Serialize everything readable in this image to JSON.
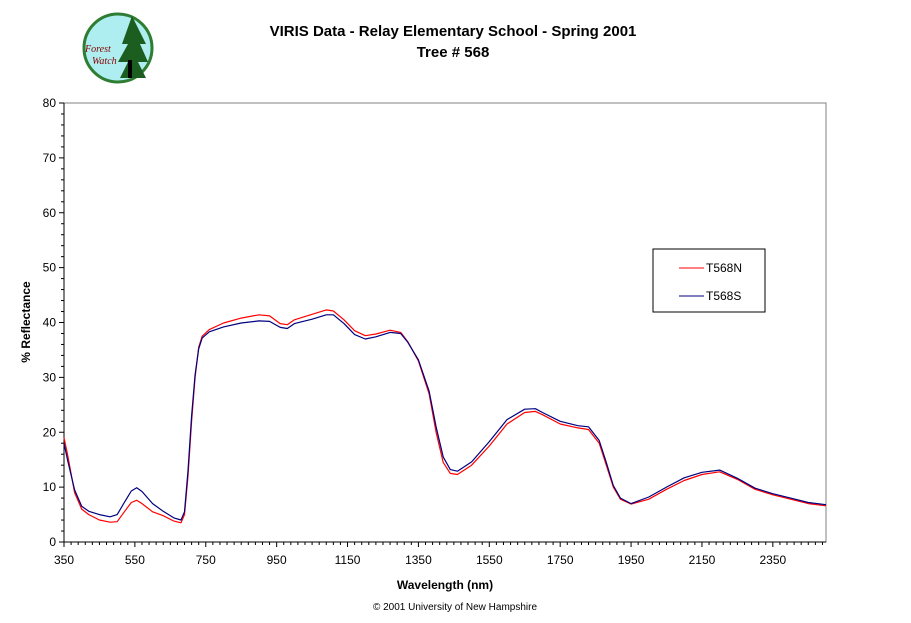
{
  "logo": {
    "line1": "Forest",
    "line2": "Watch"
  },
  "copyright": "© 2001 University of New Hampshire",
  "colors": {
    "series1": "#ff0000",
    "series2": "#000080",
    "logo_bg": "#aeeef0",
    "logo_ring": "#2e7d32"
  },
  "chart_data": {
    "type": "line",
    "title": "VIRIS Data - Relay Elementary School - Spring 2001",
    "subtitle": "Tree # 568",
    "xlabel": "Wavelength (nm)",
    "ylabel": "% Reflectance",
    "xlim": [
      350,
      2500
    ],
    "ylim": [
      0,
      80
    ],
    "xticks": [
      350,
      550,
      750,
      950,
      1150,
      1350,
      1550,
      1750,
      1950,
      2150,
      2350
    ],
    "yticks": [
      0,
      10,
      20,
      30,
      40,
      50,
      60,
      70,
      80
    ],
    "grid": false,
    "legend_position": "right",
    "series": [
      {
        "name": "T568N",
        "color": "#ff0000",
        "points": [
          [
            350,
            19
          ],
          [
            360,
            16
          ],
          [
            380,
            9
          ],
          [
            400,
            6
          ],
          [
            420,
            5
          ],
          [
            450,
            4
          ],
          [
            480,
            3.6
          ],
          [
            500,
            3.7
          ],
          [
            520,
            5.5
          ],
          [
            540,
            7.2
          ],
          [
            555,
            7.6
          ],
          [
            570,
            7.0
          ],
          [
            600,
            5.5
          ],
          [
            630,
            4.8
          ],
          [
            660,
            3.8
          ],
          [
            680,
            3.5
          ],
          [
            690,
            5
          ],
          [
            700,
            12
          ],
          [
            710,
            22
          ],
          [
            720,
            30
          ],
          [
            730,
            35.5
          ],
          [
            740,
            37.5
          ],
          [
            760,
            38.7
          ],
          [
            800,
            39.9
          ],
          [
            850,
            40.8
          ],
          [
            900,
            41.4
          ],
          [
            930,
            41.2
          ],
          [
            960,
            39.8
          ],
          [
            980,
            39.6
          ],
          [
            1000,
            40.5
          ],
          [
            1050,
            41.5
          ],
          [
            1090,
            42.3
          ],
          [
            1110,
            42.1
          ],
          [
            1140,
            40.5
          ],
          [
            1170,
            38.5
          ],
          [
            1200,
            37.6
          ],
          [
            1230,
            37.9
          ],
          [
            1270,
            38.6
          ],
          [
            1300,
            38.2
          ],
          [
            1320,
            36.5
          ],
          [
            1350,
            33
          ],
          [
            1380,
            27
          ],
          [
            1400,
            20
          ],
          [
            1420,
            14.5
          ],
          [
            1440,
            12.5
          ],
          [
            1460,
            12.3
          ],
          [
            1500,
            14
          ],
          [
            1550,
            17.5
          ],
          [
            1600,
            21.5
          ],
          [
            1650,
            23.6
          ],
          [
            1680,
            23.8
          ],
          [
            1700,
            23.2
          ],
          [
            1750,
            21.5
          ],
          [
            1800,
            20.8
          ],
          [
            1830,
            20.5
          ],
          [
            1860,
            18
          ],
          [
            1880,
            14
          ],
          [
            1900,
            10
          ],
          [
            1920,
            7.8
          ],
          [
            1950,
            6.9
          ],
          [
            2000,
            7.8
          ],
          [
            2050,
            9.6
          ],
          [
            2100,
            11.2
          ],
          [
            2150,
            12.3
          ],
          [
            2200,
            12.8
          ],
          [
            2250,
            11.4
          ],
          [
            2300,
            9.6
          ],
          [
            2350,
            8.6
          ],
          [
            2400,
            7.8
          ],
          [
            2450,
            7.0
          ],
          [
            2500,
            6.6
          ]
        ]
      },
      {
        "name": "T568S",
        "color": "#000080",
        "points": [
          [
            350,
            18
          ],
          [
            360,
            15
          ],
          [
            380,
            9.5
          ],
          [
            400,
            6.5
          ],
          [
            420,
            5.6
          ],
          [
            450,
            5
          ],
          [
            480,
            4.6
          ],
          [
            500,
            5.0
          ],
          [
            520,
            7.2
          ],
          [
            540,
            9.3
          ],
          [
            555,
            9.9
          ],
          [
            570,
            9.2
          ],
          [
            600,
            7.0
          ],
          [
            630,
            5.6
          ],
          [
            660,
            4.4
          ],
          [
            680,
            4.0
          ],
          [
            690,
            5.5
          ],
          [
            700,
            13
          ],
          [
            710,
            23
          ],
          [
            720,
            30.5
          ],
          [
            730,
            35.2
          ],
          [
            740,
            37.2
          ],
          [
            760,
            38.3
          ],
          [
            800,
            39.2
          ],
          [
            850,
            39.9
          ],
          [
            900,
            40.3
          ],
          [
            930,
            40.2
          ],
          [
            960,
            39.1
          ],
          [
            980,
            38.9
          ],
          [
            1000,
            39.8
          ],
          [
            1050,
            40.6
          ],
          [
            1090,
            41.4
          ],
          [
            1110,
            41.4
          ],
          [
            1140,
            39.8
          ],
          [
            1170,
            37.8
          ],
          [
            1200,
            37.0
          ],
          [
            1230,
            37.4
          ],
          [
            1270,
            38.2
          ],
          [
            1300,
            38.0
          ],
          [
            1320,
            36.4
          ],
          [
            1350,
            33.2
          ],
          [
            1380,
            27.5
          ],
          [
            1400,
            21
          ],
          [
            1420,
            15.5
          ],
          [
            1440,
            13.2
          ],
          [
            1460,
            12.9
          ],
          [
            1500,
            14.6
          ],
          [
            1550,
            18.3
          ],
          [
            1600,
            22.3
          ],
          [
            1650,
            24.2
          ],
          [
            1680,
            24.3
          ],
          [
            1700,
            23.6
          ],
          [
            1750,
            22.0
          ],
          [
            1800,
            21.2
          ],
          [
            1830,
            21.0
          ],
          [
            1860,
            18.5
          ],
          [
            1880,
            14.5
          ],
          [
            1900,
            10.3
          ],
          [
            1920,
            8.0
          ],
          [
            1950,
            7.0
          ],
          [
            2000,
            8.2
          ],
          [
            2050,
            10.0
          ],
          [
            2100,
            11.7
          ],
          [
            2150,
            12.7
          ],
          [
            2200,
            13.1
          ],
          [
            2250,
            11.6
          ],
          [
            2300,
            9.8
          ],
          [
            2350,
            8.8
          ],
          [
            2400,
            8.0
          ],
          [
            2450,
            7.2
          ],
          [
            2500,
            6.8
          ]
        ]
      }
    ]
  }
}
